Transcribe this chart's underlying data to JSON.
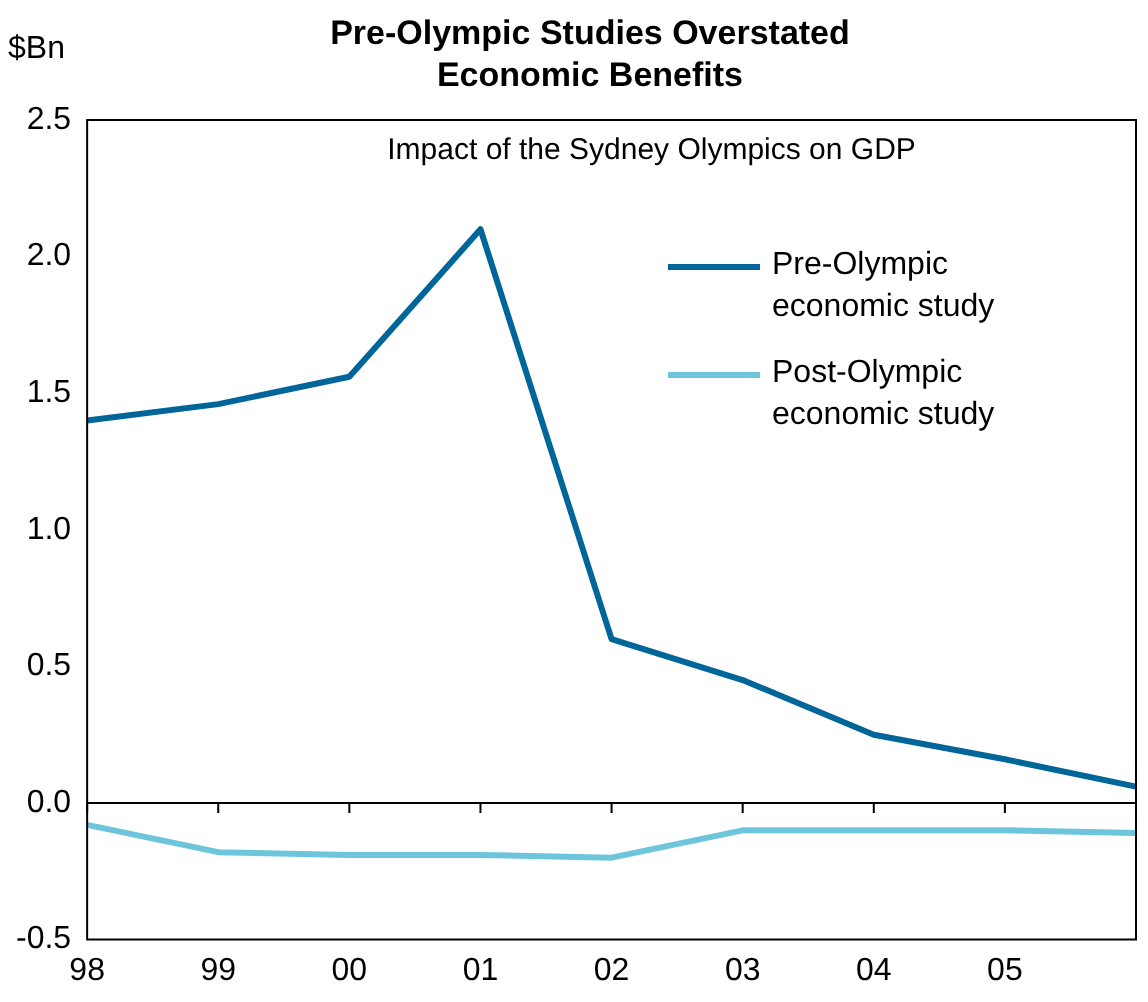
{
  "chart_data": {
    "type": "line",
    "title": "Pre-Olympic Studies Overstated Economic Benefits",
    "subtitle": "Impact of the Sydney Olympics on GDP",
    "ylabel": "$Bn",
    "categories": [
      "98",
      "99",
      "00",
      "01",
      "02",
      "03",
      "04",
      "05",
      null
    ],
    "series": [
      {
        "name": "Pre-Olympic economic study",
        "color": "#006699",
        "values": [
          1.4,
          1.46,
          1.56,
          2.1,
          0.6,
          0.45,
          0.25,
          0.16,
          0.06
        ]
      },
      {
        "name": "Post-Olympic economic study",
        "color": "#6cc5db",
        "values": [
          -0.08,
          -0.18,
          -0.19,
          -0.19,
          -0.2,
          -0.1,
          -0.1,
          -0.1,
          -0.11
        ]
      }
    ],
    "ylim": [
      -0.5,
      2.5
    ],
    "yticks": [
      {
        "value": -0.5,
        "label": "-0.5"
      },
      {
        "value": 0,
        "label": "0.0"
      },
      {
        "value": 0.5,
        "label": "0.5"
      },
      {
        "value": 1,
        "label": "1.0"
      },
      {
        "value": 1.5,
        "label": "1.5"
      },
      {
        "value": 2,
        "label": "2.0"
      },
      {
        "value": 2.5,
        "label": "2.5"
      }
    ],
    "legend": "top right",
    "marker": "none",
    "line_style": "solid"
  }
}
